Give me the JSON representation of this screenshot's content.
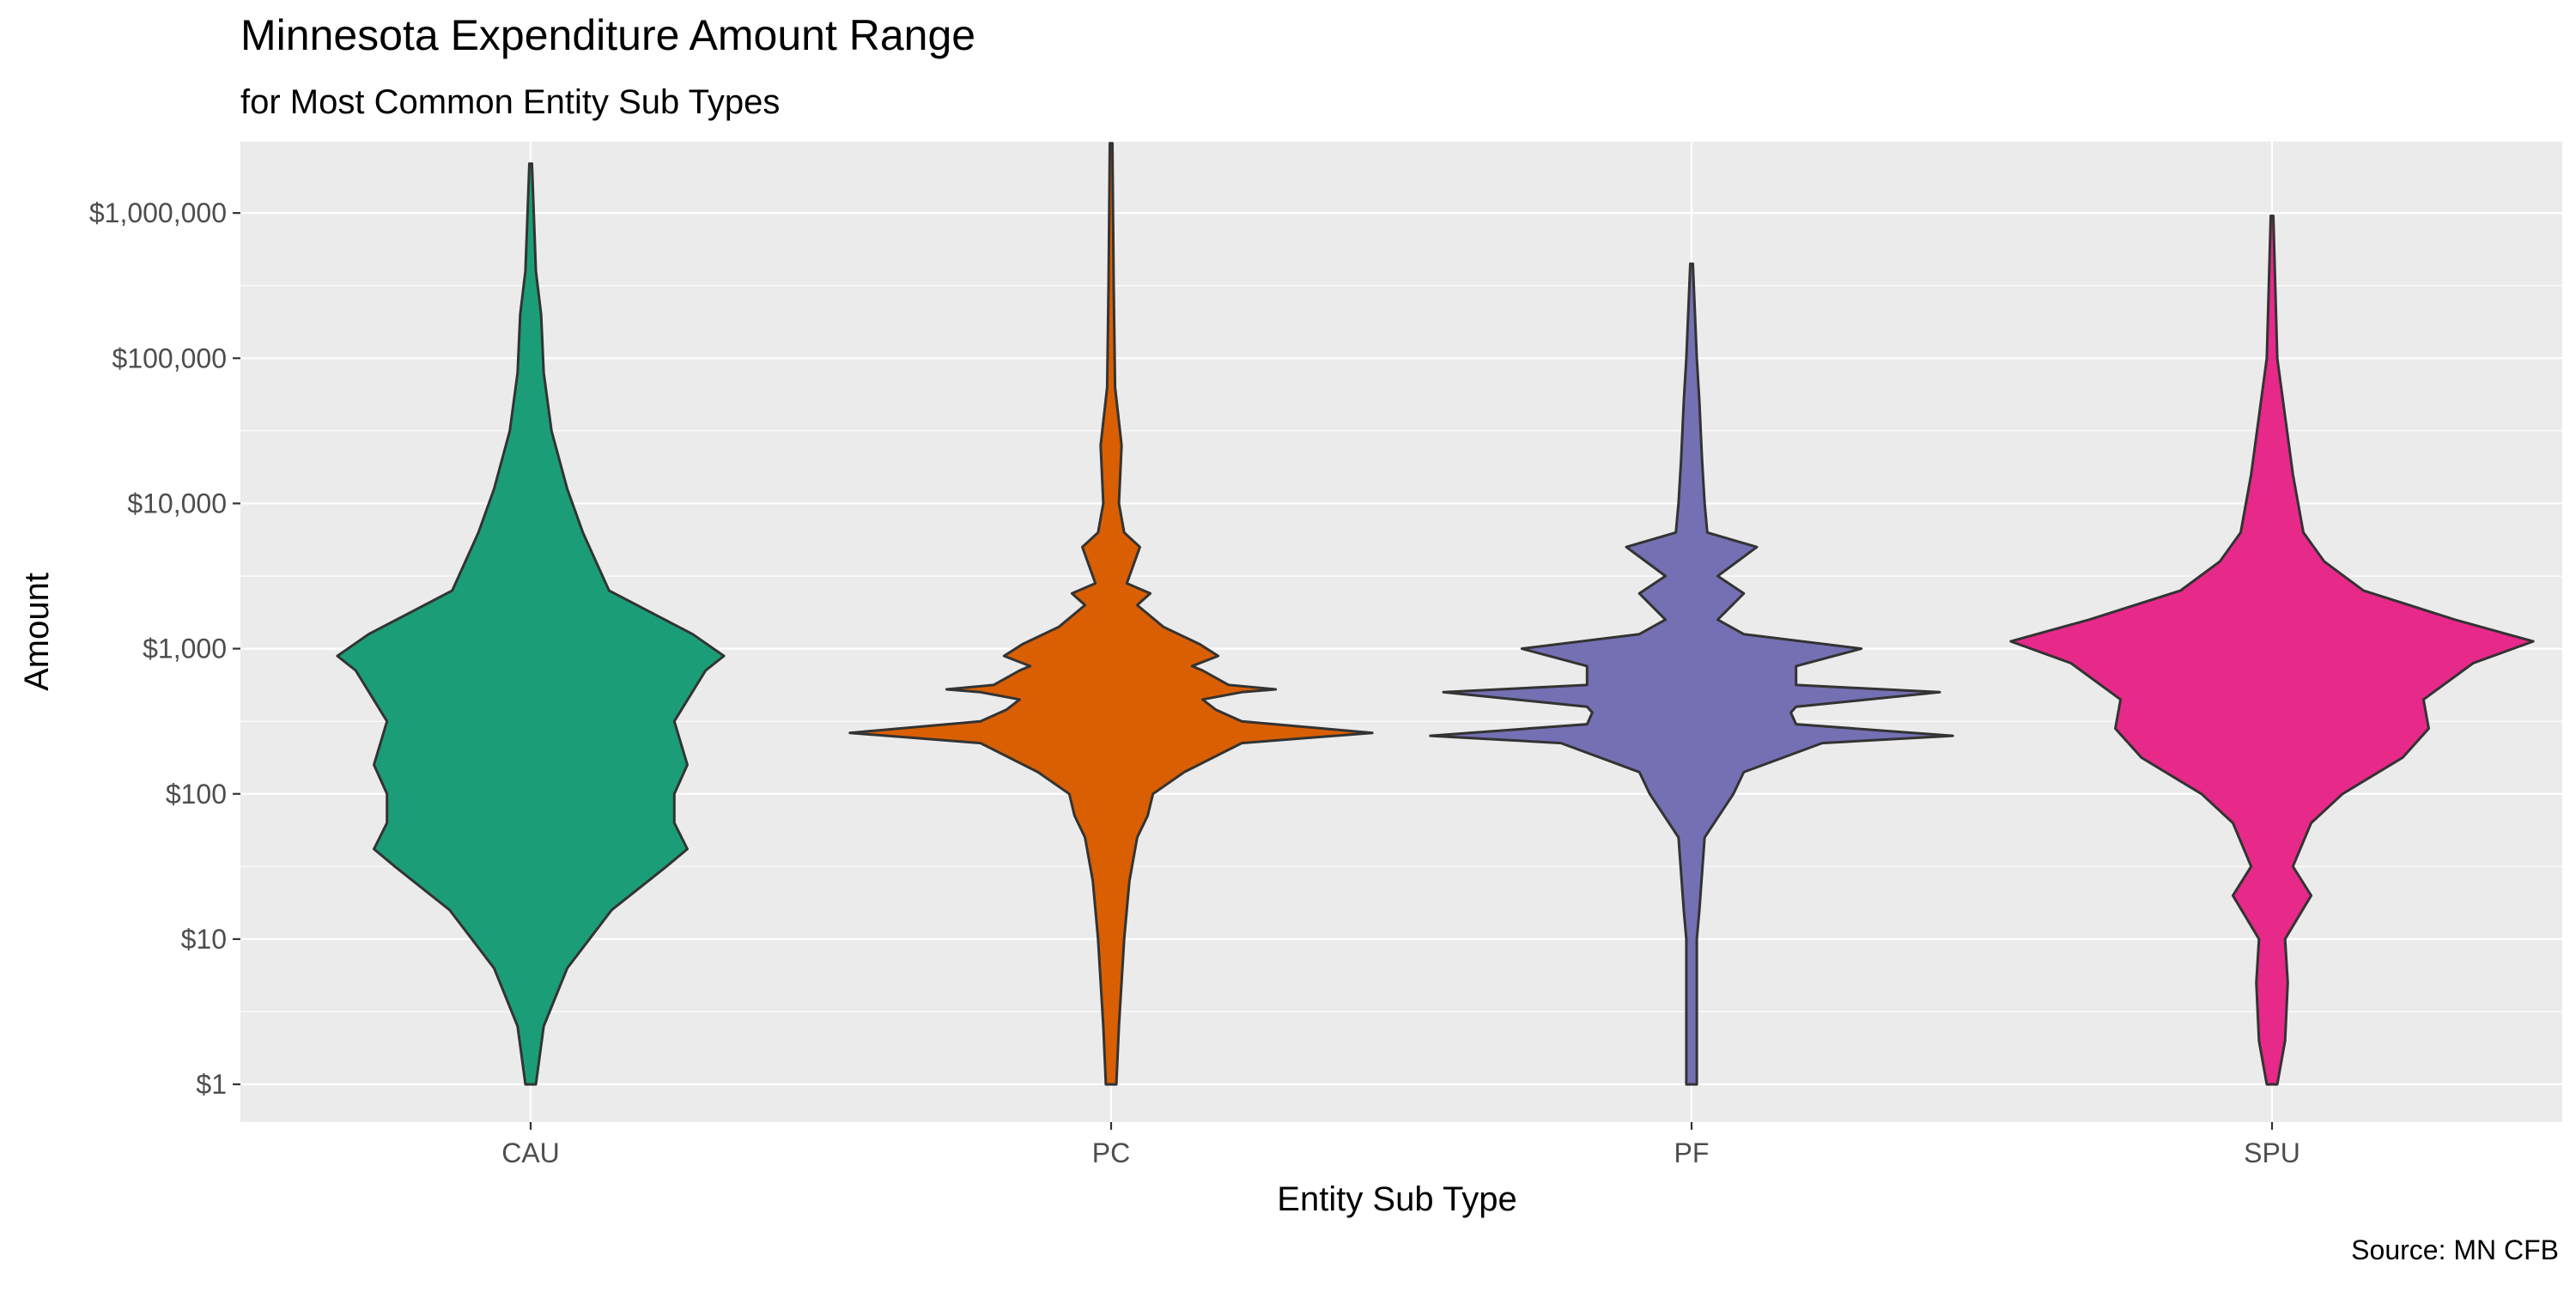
{
  "chart_data": {
    "type": "violin",
    "title": "Minnesota Expenditure Amount Range",
    "subtitle": "for Most Common Entity Sub Types",
    "xlabel": "Entity Sub Type",
    "ylabel": "Amount",
    "caption": "Source: MN CFB",
    "y_scale": "log10",
    "ylim": [
      0.55,
      3100000
    ],
    "y_ticks": [
      1,
      10,
      100,
      1000,
      10000,
      100000,
      1000000
    ],
    "y_tick_labels": [
      "$1",
      "$10",
      "$100",
      "$1,000",
      "$10,000",
      "$100,000",
      "$1,000,000"
    ],
    "grid": true,
    "legend": "none",
    "categories": [
      "CAU",
      "PC",
      "PF",
      "SPU"
    ],
    "colors": {
      "panel_background": "#EBEBEB",
      "grid": "#FFFFFF",
      "outline": "#333333",
      "CAU": "#1B9E77",
      "PC": "#D95F02",
      "PF": "#7570B3",
      "SPU": "#E7298A"
    },
    "series": [
      {
        "category": "CAU",
        "color": "#1B9E77",
        "min": 1,
        "max": 2200000,
        "profile": [
          [
            0,
            0.02
          ],
          [
            0.4,
            0.05
          ],
          [
            0.8,
            0.14
          ],
          [
            1.2,
            0.31
          ],
          [
            1.5,
            0.52
          ],
          [
            1.62,
            0.6
          ],
          [
            1.8,
            0.55
          ],
          [
            2.0,
            0.55
          ],
          [
            2.2,
            0.6
          ],
          [
            2.5,
            0.55
          ],
          [
            2.85,
            0.67
          ],
          [
            2.95,
            0.74
          ],
          [
            3.1,
            0.62
          ],
          [
            3.4,
            0.3
          ],
          [
            3.8,
            0.2
          ],
          [
            4.1,
            0.14
          ],
          [
            4.5,
            0.08
          ],
          [
            4.9,
            0.05
          ],
          [
            5.3,
            0.04
          ],
          [
            5.6,
            0.02
          ],
          [
            6.34,
            0.005
          ]
        ]
      },
      {
        "category": "PC",
        "color": "#D95F02",
        "min": 1,
        "max": 3000000,
        "profile": [
          [
            0,
            0.02
          ],
          [
            0.4,
            0.03
          ],
          [
            1.0,
            0.05
          ],
          [
            1.4,
            0.07
          ],
          [
            1.7,
            0.1
          ],
          [
            1.85,
            0.14
          ],
          [
            2.0,
            0.16
          ],
          [
            2.15,
            0.28
          ],
          [
            2.35,
            0.5
          ],
          [
            2.42,
            1.0
          ],
          [
            2.5,
            0.5
          ],
          [
            2.58,
            0.4
          ],
          [
            2.65,
            0.35
          ],
          [
            2.7,
            0.5
          ],
          [
            2.72,
            0.63
          ],
          [
            2.75,
            0.45
          ],
          [
            2.85,
            0.35
          ],
          [
            2.88,
            0.31
          ],
          [
            2.95,
            0.41
          ],
          [
            3.03,
            0.34
          ],
          [
            3.15,
            0.2
          ],
          [
            3.3,
            0.1
          ],
          [
            3.38,
            0.15
          ],
          [
            3.45,
            0.06
          ],
          [
            3.7,
            0.11
          ],
          [
            3.8,
            0.05
          ],
          [
            4.0,
            0.03
          ],
          [
            4.4,
            0.04
          ],
          [
            4.8,
            0.015
          ],
          [
            5.5,
            0.01
          ],
          [
            6.48,
            0.005
          ]
        ]
      },
      {
        "category": "PF",
        "color": "#7570B3",
        "min": 1,
        "max": 450000,
        "profile": [
          [
            0,
            0.02
          ],
          [
            0.5,
            0.02
          ],
          [
            1.0,
            0.02
          ],
          [
            1.2,
            0.03
          ],
          [
            1.7,
            0.05
          ],
          [
            2.0,
            0.16
          ],
          [
            2.15,
            0.2
          ],
          [
            2.35,
            0.5
          ],
          [
            2.4,
            1.0
          ],
          [
            2.48,
            0.4
          ],
          [
            2.56,
            0.38
          ],
          [
            2.6,
            0.4
          ],
          [
            2.7,
            0.95
          ],
          [
            2.75,
            0.4
          ],
          [
            2.88,
            0.4
          ],
          [
            3.0,
            0.65
          ],
          [
            3.1,
            0.2
          ],
          [
            3.2,
            0.1
          ],
          [
            3.38,
            0.2
          ],
          [
            3.5,
            0.1
          ],
          [
            3.7,
            0.25
          ],
          [
            3.8,
            0.06
          ],
          [
            4.0,
            0.05
          ],
          [
            4.3,
            0.04
          ],
          [
            4.7,
            0.03
          ],
          [
            5.0,
            0.02
          ],
          [
            5.65,
            0.005
          ]
        ]
      },
      {
        "category": "SPU",
        "color": "#E7298A",
        "min": 1,
        "max": 950000,
        "profile": [
          [
            0,
            0.02
          ],
          [
            0.3,
            0.05
          ],
          [
            0.7,
            0.06
          ],
          [
            1.0,
            0.05
          ],
          [
            1.3,
            0.15
          ],
          [
            1.5,
            0.08
          ],
          [
            1.8,
            0.15
          ],
          [
            2.0,
            0.27
          ],
          [
            2.25,
            0.5
          ],
          [
            2.45,
            0.6
          ],
          [
            2.65,
            0.58
          ],
          [
            2.9,
            0.77
          ],
          [
            3.05,
            1.0
          ],
          [
            3.2,
            0.7
          ],
          [
            3.4,
            0.35
          ],
          [
            3.6,
            0.2
          ],
          [
            3.8,
            0.12
          ],
          [
            4.2,
            0.08
          ],
          [
            4.6,
            0.05
          ],
          [
            5.0,
            0.02
          ],
          [
            5.98,
            0.005
          ]
        ]
      }
    ]
  }
}
